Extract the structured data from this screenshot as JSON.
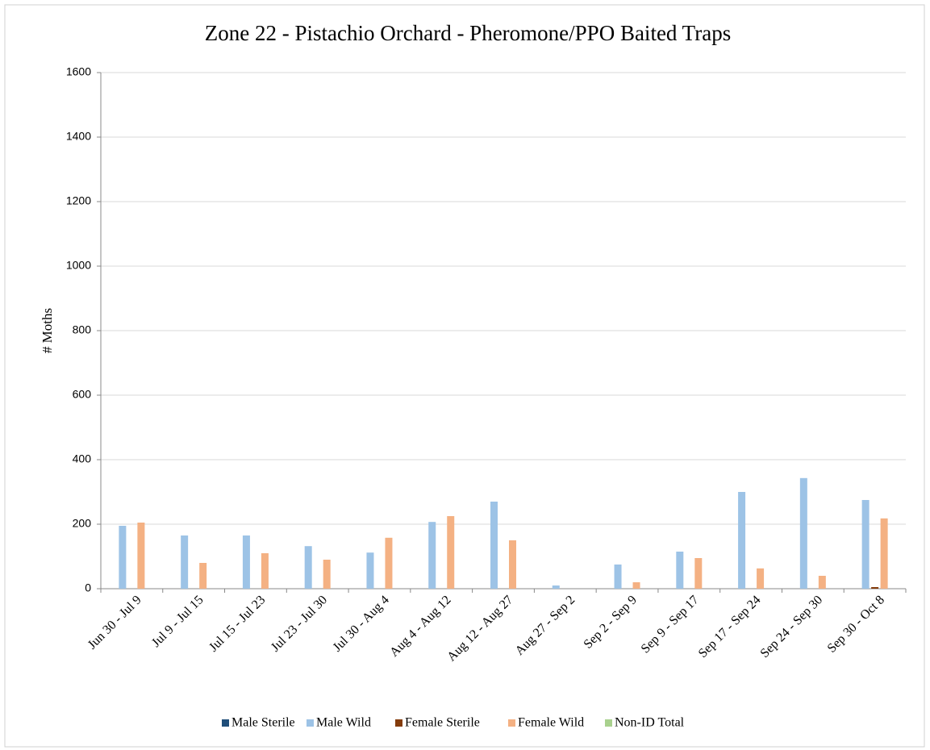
{
  "chart_data": {
    "type": "bar",
    "title": "Zone 22 - Pistachio Orchard  - Pheromone/PPO Baited Traps",
    "y_label": "# Moths",
    "categories": [
      "Jun 30 - Jul 9",
      "Jul 9 - Jul 15",
      "Jul 15 - Jul 23",
      "Jul 23 - Jul 30",
      "Jul 30 - Aug 4",
      "Aug 4 - Aug 12",
      "Aug 12 - Aug 27",
      "Aug 27 - Sep 2",
      "Sep 2 - Sep 9",
      "Sep 9 - Sep 17",
      "Sep 17 - Sep 24",
      "Sep 24 - Sep 30",
      "Sep 30 - Oct 8"
    ],
    "series": [
      {
        "name": "Male Sterile",
        "color": "#1f4e79",
        "values": [
          0,
          0,
          0,
          0,
          0,
          0,
          0,
          0,
          0,
          0,
          0,
          0,
          0
        ]
      },
      {
        "name": "Male Wild",
        "color": "#9dc3e6",
        "values": [
          195,
          165,
          165,
          132,
          112,
          207,
          270,
          10,
          75,
          115,
          300,
          343,
          275
        ]
      },
      {
        "name": "Female Sterile",
        "color": "#843c0c",
        "values": [
          0,
          0,
          0,
          0,
          0,
          0,
          0,
          0,
          0,
          0,
          0,
          0,
          5
        ]
      },
      {
        "name": "Female Wild",
        "color": "#f4b183",
        "values": [
          205,
          80,
          110,
          90,
          158,
          225,
          150,
          0,
          20,
          95,
          63,
          40,
          218
        ]
      },
      {
        "name": "Non-ID Total",
        "color": "#a9d18e",
        "values": [
          0,
          0,
          0,
          0,
          0,
          0,
          0,
          0,
          0,
          0,
          0,
          0,
          0
        ]
      }
    ],
    "ylim": [
      0,
      1600
    ],
    "yticks": [
      0,
      200,
      400,
      600,
      800,
      1000,
      1200,
      1400,
      1600
    ],
    "grid": true,
    "legend": "bottom"
  }
}
